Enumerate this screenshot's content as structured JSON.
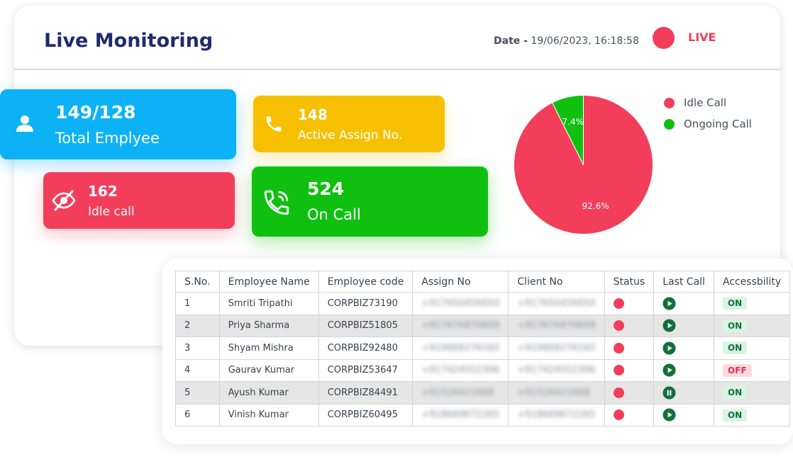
{
  "header": {
    "title": "Live Monitoring",
    "date_label": "Date -",
    "date_value": "19/06/2023, 16:18:58",
    "live_label": "LIVE"
  },
  "colors": {
    "navy": "#1f2b6b",
    "blue": "#0db2f6",
    "yellow": "#f6c000",
    "red": "#f23e5a",
    "green": "#10c010"
  },
  "stats": {
    "total": {
      "value": "149/128",
      "label": "Total Emplyee",
      "icon": "user-icon"
    },
    "active": {
      "value": "148",
      "label": "Active Assign No.",
      "icon": "phone-icon"
    },
    "idle": {
      "value": "162",
      "label": "Idle call",
      "icon": "eye-off-icon"
    },
    "oncall": {
      "value": "524",
      "label": "On Call",
      "icon": "phone-ringing-icon"
    }
  },
  "chart_data": {
    "type": "pie",
    "slices": [
      {
        "name": "Idle Call",
        "value": 92.6,
        "label": "92.6%",
        "color": "#f23e5a"
      },
      {
        "name": "Ongoing Call",
        "value": 7.4,
        "label": "7.4%",
        "color": "#10c010"
      }
    ],
    "legend_position": "right"
  },
  "table": {
    "columns": [
      "S.No.",
      "Employee Name",
      "Employee code",
      "Assign No",
      "Client No",
      "Status",
      "Last Call",
      "Accessbility"
    ],
    "rows": [
      {
        "sno": "1",
        "name": "Smriti Tripathi",
        "code": "CORPBIZ73190",
        "assign": "+917650456650",
        "client": "+917650456650",
        "last_call": "play-icon",
        "access": "ON"
      },
      {
        "sno": "2",
        "name": "Priya Sharma",
        "code": "CORPBIZ51805",
        "assign": "+917676870609",
        "client": "+917676870609",
        "last_call": "play-icon",
        "access": "ON"
      },
      {
        "sno": "3",
        "name": "Shyam Mishra",
        "code": "CORPBIZ92480",
        "assign": "+919868276165",
        "client": "+919868276165",
        "last_call": "play-icon",
        "access": "ON"
      },
      {
        "sno": "4",
        "name": "Gaurav Kumar",
        "code": "CORPBIZ53647",
        "assign": "+917424552396",
        "client": "+917424552396",
        "last_call": "play-icon",
        "access": "OFF"
      },
      {
        "sno": "5",
        "name": "Ayush Kumar",
        "code": "CORPBIZ84491",
        "assign": "+91526421668",
        "client": "+91526421668",
        "last_call": "pause-icon",
        "access": "ON"
      },
      {
        "sno": "6",
        "name": "Vinish Kumar",
        "code": "CORPBIZ60495",
        "assign": "+918669672265",
        "client": "+918669672265",
        "last_call": "play-icon",
        "access": "ON"
      }
    ]
  }
}
